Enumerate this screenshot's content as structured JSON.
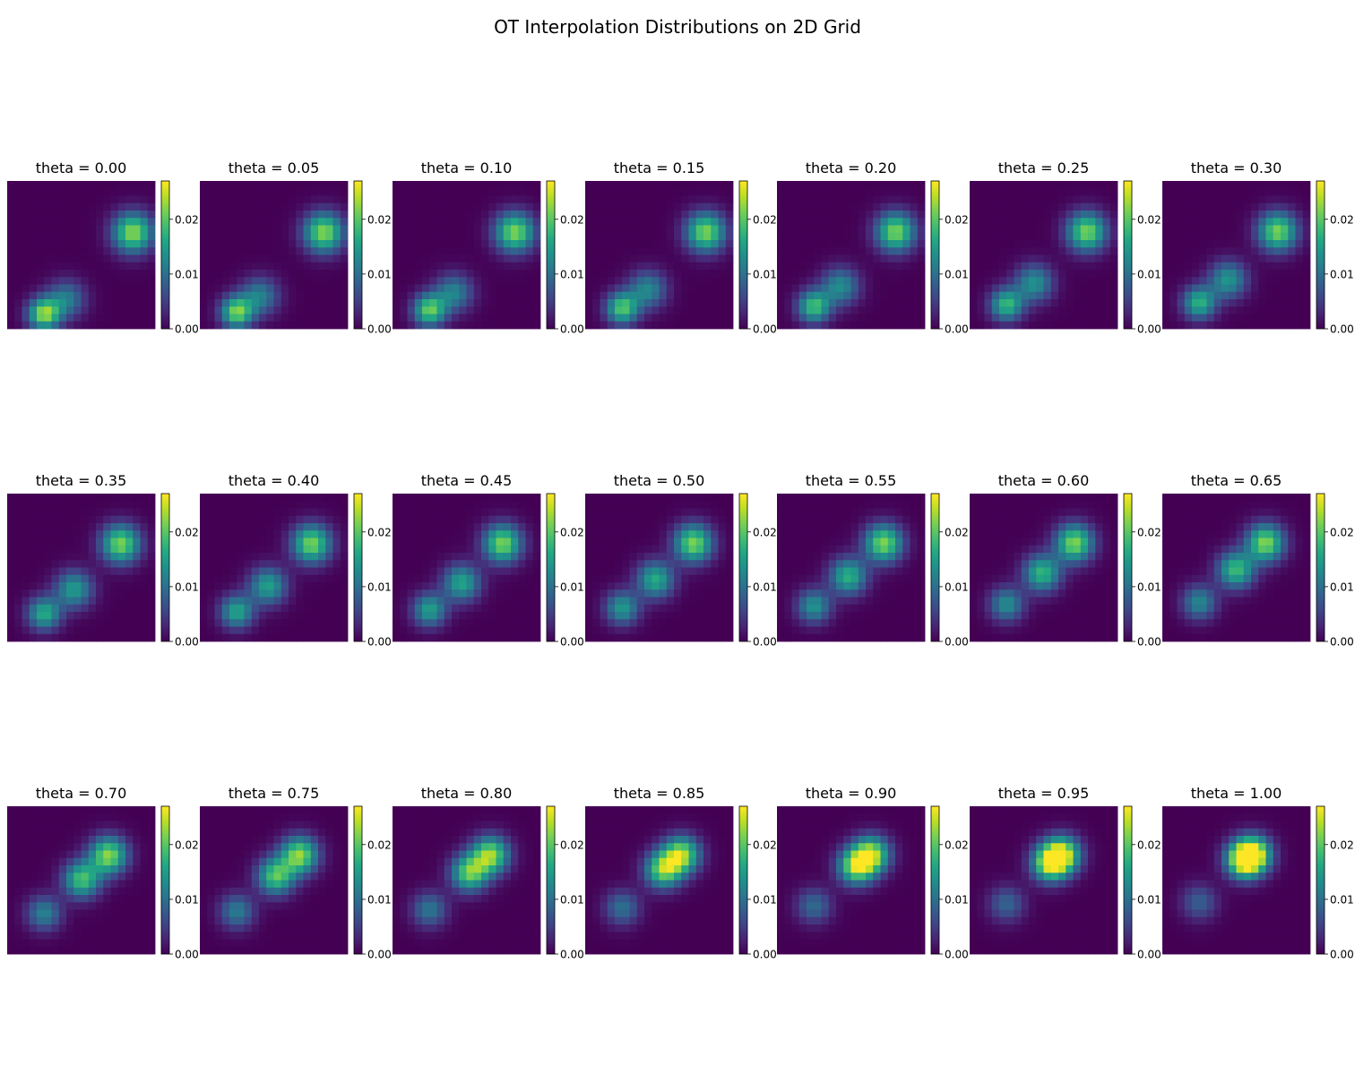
{
  "figure": {
    "title": "OT Interpolation Distributions on 2D Grid"
  },
  "chart_data": {
    "type": "heatmap",
    "grid_size": [
      20,
      20
    ],
    "colormap": "viridis",
    "axes_visible": false,
    "colorbar": {
      "vmin": 0.0,
      "vmax": 0.027,
      "ticks": [
        "0.00",
        "0.01",
        "0.02"
      ]
    },
    "layout": {
      "rows": 3,
      "cols": 7
    },
    "panels": [
      {
        "title": "theta = 0.00",
        "theta": 0.0
      },
      {
        "title": "theta = 0.05",
        "theta": 0.05
      },
      {
        "title": "theta = 0.10",
        "theta": 0.1
      },
      {
        "title": "theta = 0.15",
        "theta": 0.15
      },
      {
        "title": "theta = 0.20",
        "theta": 0.2
      },
      {
        "title": "theta = 0.25",
        "theta": 0.25
      },
      {
        "title": "theta = 0.30",
        "theta": 0.3
      },
      {
        "title": "theta = 0.35",
        "theta": 0.35
      },
      {
        "title": "theta = 0.40",
        "theta": 0.4
      },
      {
        "title": "theta = 0.45",
        "theta": 0.45
      },
      {
        "title": "theta = 0.50",
        "theta": 0.5
      },
      {
        "title": "theta = 0.55",
        "theta": 0.55
      },
      {
        "title": "theta = 0.60",
        "theta": 0.6
      },
      {
        "title": "theta = 0.65",
        "theta": 0.65
      },
      {
        "title": "theta = 0.70",
        "theta": 0.7
      },
      {
        "title": "theta = 0.75",
        "theta": 0.75
      },
      {
        "title": "theta = 0.80",
        "theta": 0.8
      },
      {
        "title": "theta = 0.85",
        "theta": 0.85
      },
      {
        "title": "theta = 0.90",
        "theta": 0.9
      },
      {
        "title": "theta = 0.95",
        "theta": 0.95
      },
      {
        "title": "theta = 1.00",
        "theta": 1.0
      }
    ],
    "distribution_model": {
      "theta_0": {
        "components": [
          {
            "center": [
              4.5,
              17.5
            ],
            "weight": 0.4,
            "sigma": 1.5
          },
          {
            "center": [
              7.5,
              15.5
            ],
            "weight": 0.2,
            "sigma": 1.8
          },
          {
            "center": [
              16.5,
              6.5
            ],
            "weight": 0.4,
            "sigma": 1.9
          }
        ]
      },
      "theta_1": {
        "components": [
          {
            "center": [
              4.5,
              12.5
            ],
            "weight": 0.15,
            "sigma": 1.7
          },
          {
            "center": [
              11.5,
              6.0
            ],
            "weight": 0.85,
            "sigma": 1.9
          }
        ]
      }
    }
  }
}
